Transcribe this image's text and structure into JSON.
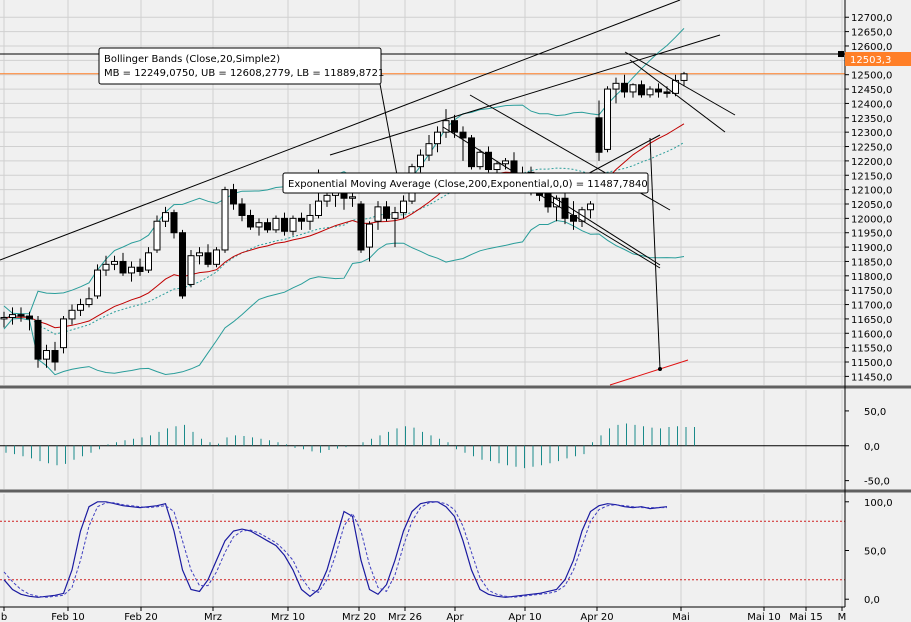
{
  "chart_data": {
    "type": "candlestick",
    "x_ticks": [
      "b",
      "Feb 10",
      "Feb 20",
      "Mrz",
      "Mrz 10",
      "Mrz 20",
      "Mrz 26",
      "Apr",
      "Apr 10",
      "Apr 20",
      "Mai",
      "Mai 10",
      "Mai 15",
      "M"
    ],
    "price_axis": {
      "ylim": [
        11420,
        12760
      ],
      "ticks": [
        "12700,0",
        "12650,0",
        "12600,0",
        "12550,0",
        "12500,0",
        "12450,0",
        "12400,0",
        "12350,0",
        "12300,0",
        "12250,0",
        "12200,0",
        "12150,0",
        "12100,0",
        "12050,0",
        "12000,0",
        "11950,0",
        "11900,0",
        "11850,0",
        "11800,0",
        "11750,0",
        "11700,0",
        "11650,0",
        "11600,0",
        "11550,0",
        "11500,0",
        "11450,0"
      ],
      "current_value": 12503.3,
      "current_label": "12503,3",
      "resistance_level": 12572
    },
    "candles": [
      {
        "o": 11650,
        "h": 11675,
        "l": 11620,
        "c": 11655
      },
      {
        "o": 11655,
        "h": 11690,
        "l": 11630,
        "c": 11665
      },
      {
        "o": 11665,
        "h": 11690,
        "l": 11640,
        "c": 11660
      },
      {
        "o": 11660,
        "h": 11675,
        "l": 11610,
        "c": 11650
      },
      {
        "o": 11645,
        "h": 11660,
        "l": 11480,
        "c": 11510
      },
      {
        "o": 11510,
        "h": 11560,
        "l": 11480,
        "c": 11540
      },
      {
        "o": 11540,
        "h": 11570,
        "l": 11470,
        "c": 11500
      },
      {
        "o": 11550,
        "h": 11660,
        "l": 11530,
        "c": 11650
      },
      {
        "o": 11650,
        "h": 11700,
        "l": 11630,
        "c": 11680
      },
      {
        "o": 11680,
        "h": 11720,
        "l": 11660,
        "c": 11700
      },
      {
        "o": 11700,
        "h": 11760,
        "l": 11690,
        "c": 11720
      },
      {
        "o": 11730,
        "h": 11840,
        "l": 11720,
        "c": 11820
      },
      {
        "o": 11820,
        "h": 11870,
        "l": 11800,
        "c": 11840
      },
      {
        "o": 11840,
        "h": 11870,
        "l": 11820,
        "c": 11850
      },
      {
        "o": 11850,
        "h": 11880,
        "l": 11800,
        "c": 11810
      },
      {
        "o": 11810,
        "h": 11850,
        "l": 11780,
        "c": 11830
      },
      {
        "o": 11830,
        "h": 11860,
        "l": 11800,
        "c": 11815
      },
      {
        "o": 11820,
        "h": 11900,
        "l": 11810,
        "c": 11880
      },
      {
        "o": 11890,
        "h": 12010,
        "l": 11880,
        "c": 11990
      },
      {
        "o": 11990,
        "h": 12040,
        "l": 11970,
        "c": 12020
      },
      {
        "o": 12020,
        "h": 12030,
        "l": 11930,
        "c": 11950
      },
      {
        "o": 11950,
        "h": 11960,
        "l": 11720,
        "c": 11730
      },
      {
        "o": 11770,
        "h": 11890,
        "l": 11760,
        "c": 11870
      },
      {
        "o": 11870,
        "h": 11900,
        "l": 11840,
        "c": 11880
      },
      {
        "o": 11880,
        "h": 11910,
        "l": 11830,
        "c": 11840
      },
      {
        "o": 11840,
        "h": 11900,
        "l": 11830,
        "c": 11890
      },
      {
        "o": 11890,
        "h": 12110,
        "l": 11880,
        "c": 12100
      },
      {
        "o": 12100,
        "h": 12120,
        "l": 12030,
        "c": 12050
      },
      {
        "o": 12050,
        "h": 12070,
        "l": 11990,
        "c": 12010
      },
      {
        "o": 12010,
        "h": 12030,
        "l": 11960,
        "c": 11970
      },
      {
        "o": 11970,
        "h": 12000,
        "l": 11940,
        "c": 11985
      },
      {
        "o": 11985,
        "h": 12000,
        "l": 11950,
        "c": 11960
      },
      {
        "o": 11960,
        "h": 12010,
        "l": 11950,
        "c": 12000
      },
      {
        "o": 12000,
        "h": 12020,
        "l": 11940,
        "c": 11955
      },
      {
        "o": 11955,
        "h": 12010,
        "l": 11940,
        "c": 12000
      },
      {
        "o": 12000,
        "h": 12020,
        "l": 11960,
        "c": 11990
      },
      {
        "o": 11990,
        "h": 12050,
        "l": 11960,
        "c": 12010
      },
      {
        "o": 12010,
        "h": 12170,
        "l": 12000,
        "c": 12060
      },
      {
        "o": 12060,
        "h": 12100,
        "l": 12040,
        "c": 12080
      },
      {
        "o": 12080,
        "h": 12110,
        "l": 12040,
        "c": 12090
      },
      {
        "o": 12090,
        "h": 12100,
        "l": 12030,
        "c": 12070
      },
      {
        "o": 12070,
        "h": 12090,
        "l": 12040,
        "c": 12075
      },
      {
        "o": 12050,
        "h": 12060,
        "l": 11880,
        "c": 11890
      },
      {
        "o": 11900,
        "h": 11990,
        "l": 11850,
        "c": 11980
      },
      {
        "o": 11990,
        "h": 12060,
        "l": 11960,
        "c": 12040
      },
      {
        "o": 12040,
        "h": 12060,
        "l": 11990,
        "c": 12000
      },
      {
        "o": 12000,
        "h": 12040,
        "l": 11900,
        "c": 12020
      },
      {
        "o": 12020,
        "h": 12080,
        "l": 12000,
        "c": 12060
      },
      {
        "o": 12060,
        "h": 12190,
        "l": 12050,
        "c": 12180
      },
      {
        "o": 12180,
        "h": 12240,
        "l": 12160,
        "c": 12220
      },
      {
        "o": 12220,
        "h": 12290,
        "l": 12200,
        "c": 12260
      },
      {
        "o": 12260,
        "h": 12320,
        "l": 12230,
        "c": 12300
      },
      {
        "o": 12300,
        "h": 12380,
        "l": 12280,
        "c": 12340
      },
      {
        "o": 12340,
        "h": 12360,
        "l": 12280,
        "c": 12300
      },
      {
        "o": 12300,
        "h": 12320,
        "l": 12200,
        "c": 12280
      },
      {
        "o": 12280,
        "h": 12290,
        "l": 12170,
        "c": 12180
      },
      {
        "o": 12180,
        "h": 12240,
        "l": 12170,
        "c": 12230
      },
      {
        "o": 12230,
        "h": 12250,
        "l": 12160,
        "c": 12170
      },
      {
        "o": 12170,
        "h": 12200,
        "l": 12150,
        "c": 12190
      },
      {
        "o": 12190,
        "h": 12210,
        "l": 12170,
        "c": 12200
      },
      {
        "o": 12200,
        "h": 12230,
        "l": 12140,
        "c": 12150
      },
      {
        "o": 12150,
        "h": 12180,
        "l": 12120,
        "c": 12130
      },
      {
        "o": 12160,
        "h": 12180,
        "l": 12080,
        "c": 12100
      },
      {
        "o": 12110,
        "h": 12130,
        "l": 12060,
        "c": 12080
      },
      {
        "o": 12090,
        "h": 12110,
        "l": 12020,
        "c": 12040
      },
      {
        "o": 12040,
        "h": 12080,
        "l": 11990,
        "c": 12070
      },
      {
        "o": 12070,
        "h": 12090,
        "l": 11980,
        "c": 12000
      },
      {
        "o": 12010,
        "h": 12060,
        "l": 11960,
        "c": 11990
      },
      {
        "o": 11990,
        "h": 12040,
        "l": 11970,
        "c": 12030
      },
      {
        "o": 12030,
        "h": 12060,
        "l": 12000,
        "c": 12050
      },
      {
        "o": 12350,
        "h": 12410,
        "l": 12200,
        "c": 12230
      },
      {
        "o": 12240,
        "h": 12460,
        "l": 12230,
        "c": 12450
      },
      {
        "o": 12450,
        "h": 12490,
        "l": 12400,
        "c": 12470
      },
      {
        "o": 12470,
        "h": 12500,
        "l": 12420,
        "c": 12440
      },
      {
        "o": 12440,
        "h": 12470,
        "l": 12420,
        "c": 12465
      },
      {
        "o": 12465,
        "h": 12480,
        "l": 12420,
        "c": 12430
      },
      {
        "o": 12430,
        "h": 12460,
        "l": 12420,
        "c": 12450
      },
      {
        "o": 12450,
        "h": 12470,
        "l": 12420,
        "c": 12440
      },
      {
        "o": 12440,
        "h": 12460,
        "l": 12420,
        "c": 12435
      },
      {
        "o": 12435,
        "h": 12500,
        "l": 12425,
        "c": 12480
      },
      {
        "o": 12480,
        "h": 12510,
        "l": 12460,
        "c": 12503
      }
    ],
    "annotations": {
      "bollinger": {
        "line1": "Bollinger Bands (Close,20,Simple2)",
        "line2": "MB = 12249,0750, UB = 12608,2779, LB = 11889,8721"
      },
      "ema": "Exponential Moving Average (Close,200,Exponential,0,0) = 11487,7840"
    },
    "histogram": {
      "ticks": [
        "50,0",
        "0,0",
        "-50,0"
      ],
      "ylim": [
        -62,
        80
      ],
      "values": [
        -10,
        -12,
        -15,
        -18,
        -22,
        -25,
        -28,
        -26,
        -20,
        -15,
        -10,
        -5,
        2,
        5,
        8,
        10,
        12,
        15,
        20,
        25,
        28,
        30,
        20,
        10,
        5,
        3,
        12,
        15,
        14,
        12,
        10,
        8,
        5,
        2,
        -3,
        -5,
        -8,
        -10,
        -6,
        -4,
        -2,
        0,
        5,
        10,
        15,
        20,
        25,
        28,
        26,
        20,
        15,
        10,
        5,
        -5,
        -10,
        -15,
        -20,
        -22,
        -25,
        -28,
        -30,
        -32,
        -30,
        -28,
        -25,
        -22,
        -18,
        -15,
        -12,
        5,
        15,
        25,
        30,
        32,
        30,
        28,
        26,
        25,
        27,
        28,
        27,
        27
      ]
    },
    "stochastic": {
      "ticks": [
        "100,0",
        "50,0",
        "0,0"
      ],
      "ylim": [
        -8,
        108
      ],
      "upper_level": 80,
      "lower_level": 20,
      "k": [
        20,
        10,
        5,
        3,
        2,
        3,
        4,
        6,
        30,
        70,
        95,
        100,
        100,
        98,
        96,
        95,
        94,
        95,
        96,
        98,
        70,
        30,
        10,
        8,
        20,
        40,
        60,
        70,
        72,
        70,
        65,
        60,
        55,
        45,
        30,
        10,
        3,
        10,
        30,
        60,
        90,
        85,
        40,
        10,
        5,
        15,
        40,
        70,
        90,
        98,
        100,
        100,
        95,
        85,
        60,
        30,
        10,
        5,
        3,
        2,
        3,
        4,
        5,
        6,
        8,
        10,
        20,
        40,
        70,
        90,
        96,
        98,
        97,
        95,
        94,
        95,
        93,
        94,
        95
      ],
      "d": [
        28,
        18,
        10,
        5,
        3,
        2,
        3,
        4,
        12,
        40,
        75,
        95,
        99,
        99,
        97,
        96,
        95,
        94,
        95,
        96,
        90,
        60,
        30,
        14,
        14,
        28,
        48,
        64,
        70,
        71,
        68,
        63,
        58,
        50,
        40,
        22,
        10,
        7,
        20,
        45,
        75,
        88,
        70,
        35,
        12,
        8,
        25,
        55,
        80,
        94,
        99,
        100,
        98,
        92,
        75,
        48,
        22,
        9,
        5,
        3,
        2,
        3,
        4,
        5,
        6,
        8,
        14,
        30,
        55,
        80,
        92,
        96,
        97,
        96,
        95,
        94,
        94,
        94,
        94
      ]
    }
  }
}
